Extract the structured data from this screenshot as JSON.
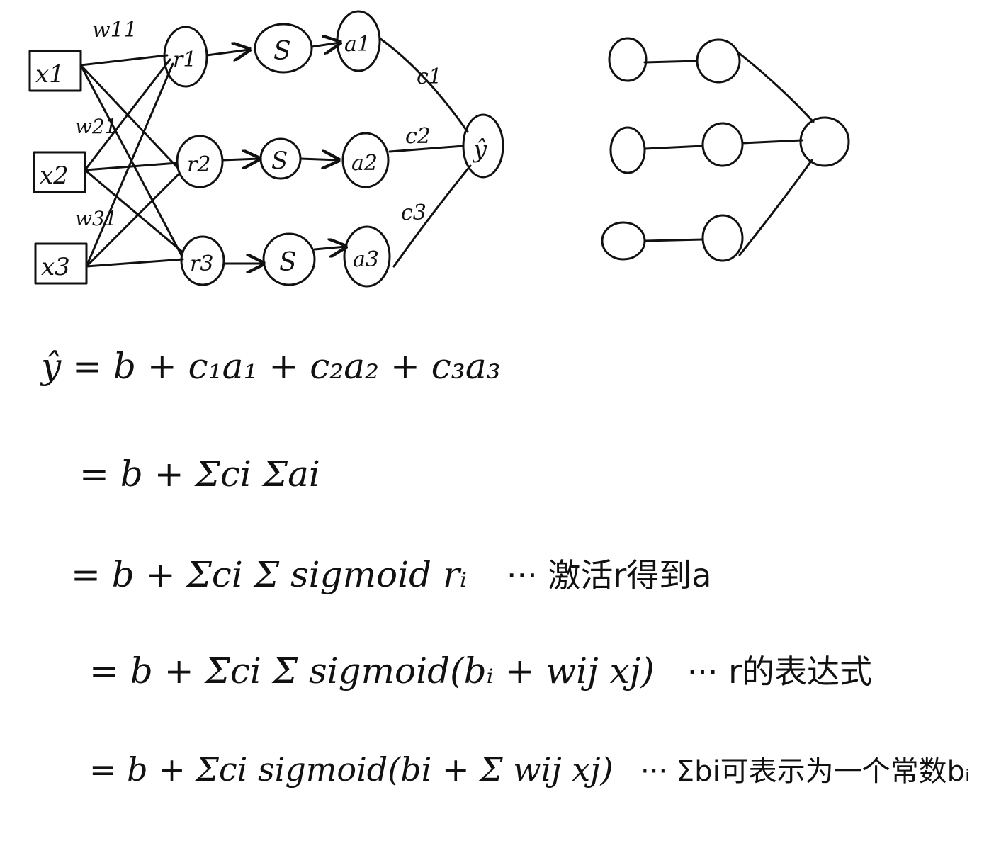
{
  "network": {
    "inputs": [
      "x1",
      "x2",
      "x3"
    ],
    "weights": [
      "w11",
      "w21",
      "w31"
    ],
    "r_nodes": [
      "r1",
      "r2",
      "r3"
    ],
    "sigmoid_nodes": [
      "S",
      "S",
      "S"
    ],
    "a_nodes": [
      "a1",
      "a2",
      "a3"
    ],
    "c_weights": [
      "c1",
      "c2",
      "c3"
    ],
    "output": "ŷ"
  },
  "equations": [
    {
      "expr": "ŷ = b + c₁a₁ + c₂a₂ + c₃a₃",
      "note": ""
    },
    {
      "expr": "= b + Σci Σai",
      "note": ""
    },
    {
      "expr": "= b + Σci Σ sigmoid rᵢ",
      "note": "··· 激活r得到a"
    },
    {
      "expr": "= b + Σci Σ sigmoid(bᵢ + wij xj)",
      "note": "··· r的表达式"
    },
    {
      "expr": "= b + Σci sigmoid(bi + Σ wij xj)",
      "note": "··· Σbi可表示为一个常数bᵢ"
    }
  ],
  "colors": {
    "ink": "#111111",
    "paper": "#ffffff"
  }
}
